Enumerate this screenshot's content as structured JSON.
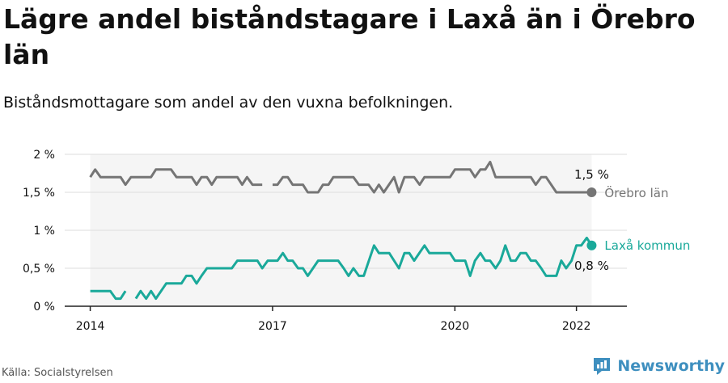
{
  "header": {
    "title": "Lägre andel biståndstagare i Laxå än i Örebro län",
    "subtitle": "Biståndsmottagare som andel av den vuxna befolkningen."
  },
  "footer": {
    "source": "Källa: Socialstyrelsen",
    "brand": "Newsworthy"
  },
  "colors": {
    "county": "#757575",
    "municipality": "#1aa99a",
    "band": "#f5f5f5",
    "grid": "#dddddd",
    "brand": "#3e8fbf"
  },
  "chart_data": {
    "type": "line",
    "title": "Lägre andel biståndstagare i Laxå än i Örebro län",
    "subtitle": "Biståndsmottagare som andel av den vuxna befolkningen.",
    "ylim": [
      0,
      2
    ],
    "xlim": [
      2013.58,
      2022.83
    ],
    "y_ticks": [
      0,
      0.5,
      1,
      1.5,
      2
    ],
    "y_tick_labels": [
      "0 %",
      "0,5 %",
      "1 %",
      "1,5 %",
      "2 %"
    ],
    "x_ticks": [
      2014,
      2017,
      2020,
      2022
    ],
    "x_tick_labels": [
      "2014",
      "2017",
      "2020",
      "2022"
    ],
    "grid": true,
    "end_labels": {
      "county_value": "1,5 %",
      "municipality_value": "0,8 %"
    },
    "series": [
      {
        "name": "Örebro län",
        "color": "#757575",
        "values": [
          [
            2014.0,
            1.7
          ],
          [
            2014.08,
            1.8
          ],
          [
            2014.17,
            1.7
          ],
          [
            2014.25,
            1.7
          ],
          [
            2014.5,
            1.7
          ],
          [
            2014.58,
            1.6
          ],
          [
            2014.67,
            1.7
          ],
          [
            2014.75,
            1.7
          ],
          [
            2015.0,
            1.7
          ],
          [
            2015.08,
            1.8
          ],
          [
            2015.33,
            1.8
          ],
          [
            2015.42,
            1.7
          ],
          [
            2015.67,
            1.7
          ],
          [
            2015.75,
            1.6
          ],
          [
            2015.83,
            1.7
          ],
          [
            2015.92,
            1.7
          ],
          [
            2016.0,
            1.6
          ],
          [
            2016.08,
            1.7
          ],
          [
            2016.42,
            1.7
          ],
          [
            2016.5,
            1.6
          ],
          [
            2016.58,
            1.7
          ],
          [
            2016.67,
            1.6
          ],
          [
            2016.83,
            1.6
          ],
          null,
          [
            2017.0,
            1.6
          ],
          [
            2017.08,
            1.6
          ],
          [
            2017.17,
            1.7
          ],
          [
            2017.25,
            1.7
          ],
          [
            2017.33,
            1.6
          ],
          [
            2017.5,
            1.6
          ],
          [
            2017.58,
            1.5
          ],
          [
            2017.75,
            1.5
          ],
          [
            2017.83,
            1.6
          ],
          [
            2017.92,
            1.6
          ],
          [
            2018.0,
            1.7
          ],
          [
            2018.33,
            1.7
          ],
          [
            2018.42,
            1.6
          ],
          [
            2018.58,
            1.6
          ],
          [
            2018.67,
            1.5
          ],
          [
            2018.75,
            1.6
          ],
          [
            2018.83,
            1.5
          ],
          [
            2019.0,
            1.7
          ],
          [
            2019.08,
            1.5
          ],
          [
            2019.17,
            1.7
          ],
          [
            2019.33,
            1.7
          ],
          [
            2019.42,
            1.6
          ],
          [
            2019.5,
            1.7
          ],
          [
            2019.92,
            1.7
          ],
          [
            2020.0,
            1.8
          ],
          [
            2020.25,
            1.8
          ],
          [
            2020.33,
            1.7
          ],
          [
            2020.42,
            1.8
          ],
          [
            2020.5,
            1.8
          ],
          [
            2020.58,
            1.9
          ],
          [
            2020.67,
            1.7
          ],
          [
            2021.25,
            1.7
          ],
          [
            2021.33,
            1.6
          ],
          [
            2021.42,
            1.7
          ],
          [
            2021.5,
            1.7
          ],
          [
            2021.67,
            1.5
          ],
          [
            2022.25,
            1.5
          ]
        ]
      },
      {
        "name": "Laxå kommun",
        "color": "#1aa99a",
        "values": [
          [
            2014.0,
            0.2
          ],
          [
            2014.33,
            0.2
          ],
          [
            2014.42,
            0.1
          ],
          [
            2014.5,
            0.1
          ],
          [
            2014.58,
            0.2
          ],
          null,
          [
            2014.75,
            0.1
          ],
          [
            2014.83,
            0.2
          ],
          [
            2014.92,
            0.1
          ],
          [
            2015.0,
            0.2
          ],
          [
            2015.08,
            0.1
          ],
          [
            2015.25,
            0.3
          ],
          [
            2015.5,
            0.3
          ],
          [
            2015.58,
            0.4
          ],
          [
            2015.67,
            0.4
          ],
          [
            2015.75,
            0.3
          ],
          [
            2015.83,
            0.4
          ],
          [
            2015.92,
            0.5
          ],
          [
            2016.33,
            0.5
          ],
          [
            2016.42,
            0.6
          ],
          [
            2016.75,
            0.6
          ],
          [
            2016.83,
            0.5
          ],
          [
            2016.92,
            0.6
          ],
          [
            2017.08,
            0.6
          ],
          [
            2017.17,
            0.7
          ],
          [
            2017.25,
            0.6
          ],
          [
            2017.33,
            0.6
          ],
          [
            2017.42,
            0.5
          ],
          [
            2017.5,
            0.5
          ],
          [
            2017.58,
            0.4
          ],
          [
            2017.75,
            0.6
          ],
          [
            2018.08,
            0.6
          ],
          [
            2018.17,
            0.5
          ],
          [
            2018.25,
            0.4
          ],
          [
            2018.33,
            0.5
          ],
          [
            2018.42,
            0.4
          ],
          [
            2018.5,
            0.4
          ],
          [
            2018.67,
            0.8
          ],
          [
            2018.75,
            0.7
          ],
          [
            2018.92,
            0.7
          ],
          [
            2019.08,
            0.5
          ],
          [
            2019.17,
            0.7
          ],
          [
            2019.25,
            0.7
          ],
          [
            2019.33,
            0.6
          ],
          [
            2019.5,
            0.8
          ],
          [
            2019.58,
            0.7
          ],
          [
            2019.92,
            0.7
          ],
          [
            2020.0,
            0.6
          ],
          [
            2020.17,
            0.6
          ],
          [
            2020.25,
            0.4
          ],
          [
            2020.33,
            0.6
          ],
          [
            2020.42,
            0.7
          ],
          [
            2020.5,
            0.6
          ],
          [
            2020.58,
            0.6
          ],
          [
            2020.67,
            0.5
          ],
          [
            2020.75,
            0.6
          ],
          [
            2020.83,
            0.8
          ],
          [
            2020.92,
            0.6
          ],
          [
            2021.0,
            0.6
          ],
          [
            2021.08,
            0.7
          ],
          [
            2021.17,
            0.7
          ],
          [
            2021.25,
            0.6
          ],
          [
            2021.33,
            0.6
          ],
          [
            2021.42,
            0.5
          ],
          [
            2021.5,
            0.4
          ],
          [
            2021.67,
            0.4
          ],
          [
            2021.75,
            0.6
          ],
          [
            2021.83,
            0.5
          ],
          [
            2021.92,
            0.6
          ],
          [
            2022.0,
            0.8
          ],
          [
            2022.08,
            0.8
          ],
          [
            2022.17,
            0.9
          ],
          [
            2022.25,
            0.8
          ]
        ]
      }
    ]
  }
}
